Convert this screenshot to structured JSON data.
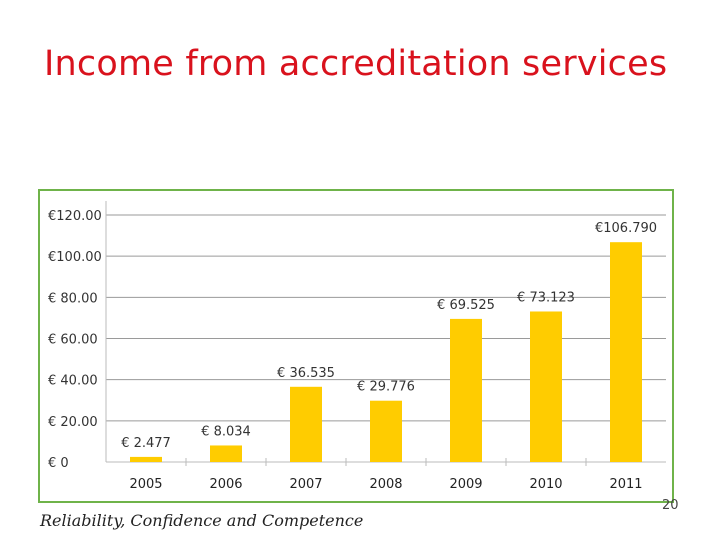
{
  "slide": {
    "title": "Income from accreditation services",
    "footer": "Reliability, Confidence and Competence",
    "page_number": "20"
  },
  "colors": {
    "title": "#d9121d",
    "bar": "#ffcc00",
    "frame": "#6fb34a",
    "gridline": "#9a9a9a"
  },
  "chart_data": {
    "type": "bar",
    "categories": [
      "2005",
      "2006",
      "2007",
      "2008",
      "2009",
      "2010",
      "2011"
    ],
    "values": [
      2.477,
      8.034,
      36.535,
      29.776,
      69.525,
      73.123,
      106.79
    ],
    "data_labels": [
      "€ 2.477",
      "€ 8.034",
      "€ 36.535",
      "€ 29.776",
      "€ 69.525",
      "€ 73.123",
      "€106.790"
    ],
    "ylim": [
      0,
      120
    ],
    "yticks": [
      0,
      20,
      40,
      60,
      80,
      100,
      120
    ],
    "ytick_labels": [
      "€  0",
      "€  20.00",
      "€  40.00",
      "€  60.00",
      "€  80.00",
      "€100.00",
      "€120.00"
    ],
    "grid": true,
    "title": "",
    "xlabel": "",
    "ylabel": ""
  }
}
